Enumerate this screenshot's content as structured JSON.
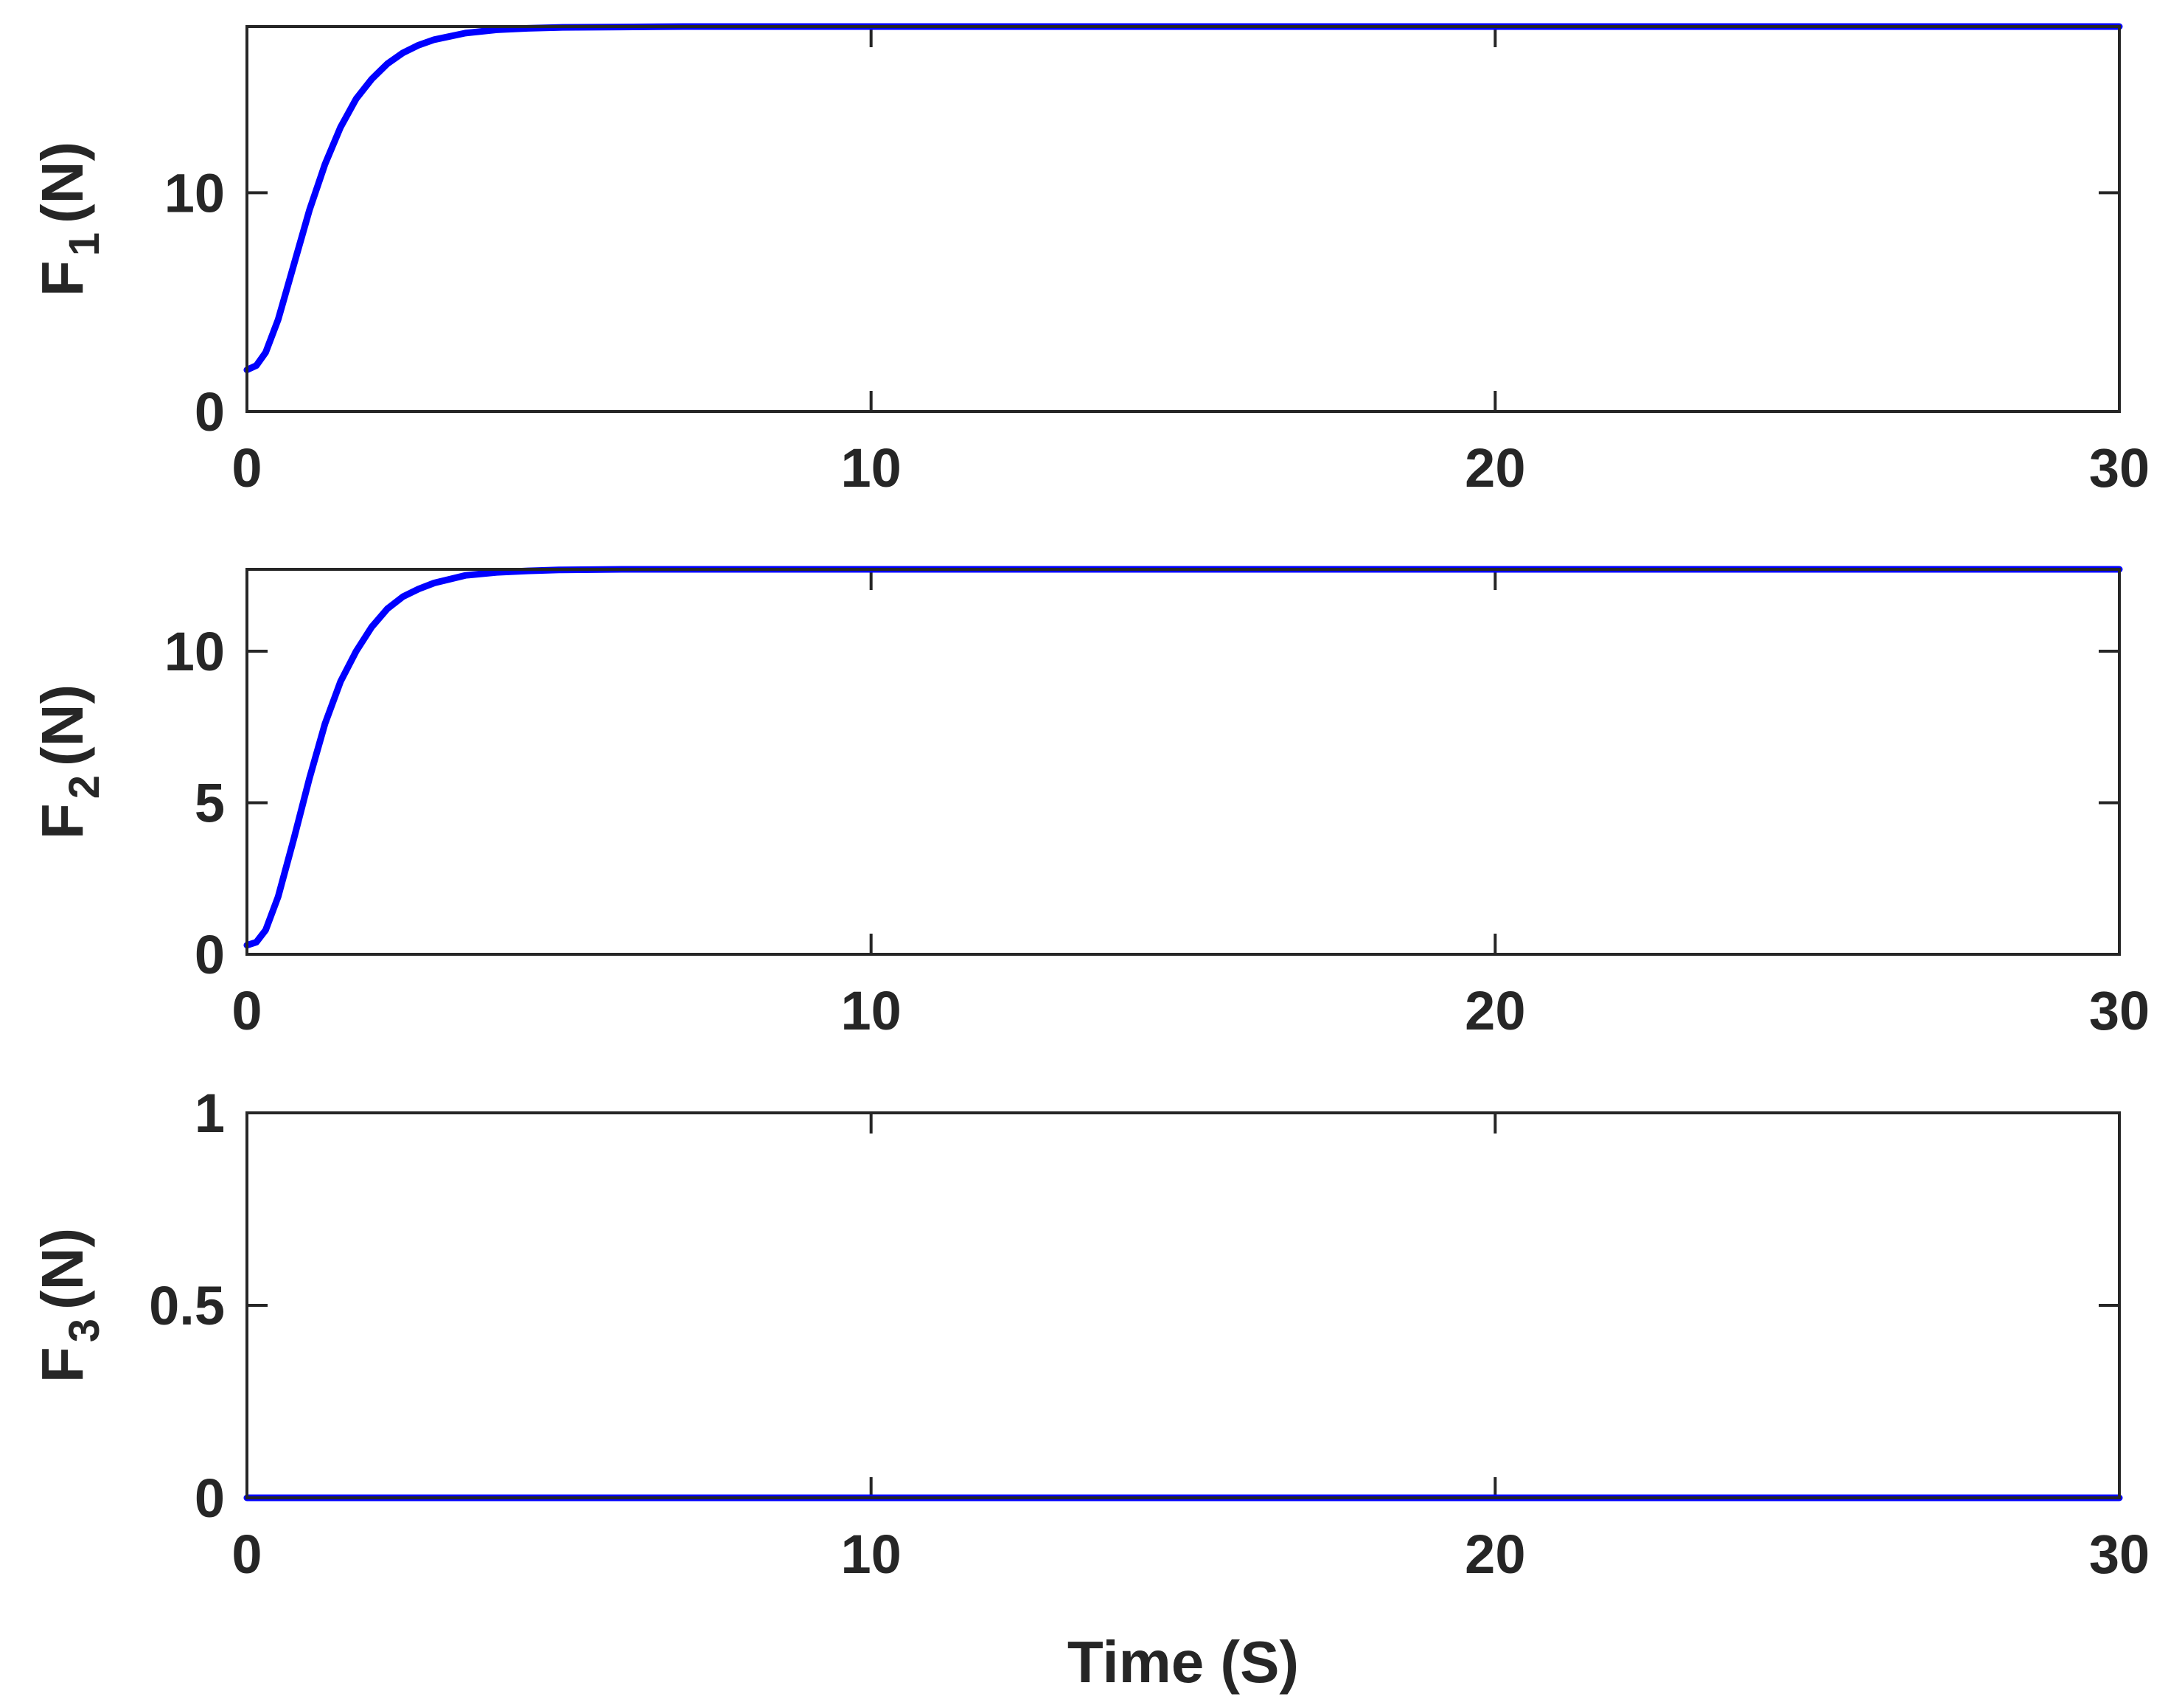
{
  "colors": {
    "series": "#0000ff",
    "axes": "#262626",
    "background": "#ffffff"
  },
  "chart_data": [
    {
      "type": "line",
      "ylabel": {
        "main": "F",
        "sub": "1",
        "unit": "(N)"
      },
      "xlabel": "",
      "xlim": [
        0,
        30
      ],
      "ylim": [
        0,
        17.6
      ],
      "xticks": [
        0,
        10,
        20,
        30
      ],
      "yticks": [
        0,
        10
      ],
      "xtick_labels": [
        "0",
        "10",
        "20",
        "30"
      ],
      "ytick_labels": [
        "0",
        "10"
      ],
      "grid": false,
      "series": [
        {
          "color": "#0000ff",
          "x": [
            0,
            0.15,
            0.3,
            0.5,
            0.75,
            1.0,
            1.25,
            1.5,
            1.75,
            2.0,
            2.25,
            2.5,
            2.75,
            3.0,
            3.5,
            4.0,
            4.5,
            5.0,
            6.0,
            7.0,
            8.0,
            10.0,
            15.0,
            20.0,
            25.0,
            30.0
          ],
          "y": [
            1.9,
            2.1,
            2.7,
            4.2,
            6.7,
            9.2,
            11.3,
            13.0,
            14.3,
            15.2,
            15.9,
            16.4,
            16.75,
            17.0,
            17.3,
            17.45,
            17.52,
            17.56,
            17.58,
            17.6,
            17.6,
            17.6,
            17.6,
            17.6,
            17.6,
            17.6
          ]
        }
      ]
    },
    {
      "type": "line",
      "ylabel": {
        "main": "F",
        "sub": "2",
        "unit": "(N)"
      },
      "xlabel": "",
      "xlim": [
        0,
        30
      ],
      "ylim": [
        0,
        12.7
      ],
      "xticks": [
        0,
        10,
        20,
        30
      ],
      "yticks": [
        0,
        5,
        10
      ],
      "xtick_labels": [
        "0",
        "10",
        "20",
        "30"
      ],
      "ytick_labels": [
        "0",
        "5",
        "10"
      ],
      "grid": false,
      "series": [
        {
          "color": "#0000ff",
          "x": [
            0,
            0.15,
            0.3,
            0.5,
            0.75,
            1.0,
            1.25,
            1.5,
            1.75,
            2.0,
            2.25,
            2.5,
            2.75,
            3.0,
            3.5,
            4.0,
            4.5,
            5.0,
            6.0,
            7.0,
            8.0,
            10.0,
            15.0,
            20.0,
            25.0,
            30.0
          ],
          "y": [
            0.3,
            0.4,
            0.8,
            1.9,
            3.8,
            5.8,
            7.6,
            9.0,
            10.0,
            10.8,
            11.4,
            11.8,
            12.05,
            12.25,
            12.5,
            12.6,
            12.65,
            12.68,
            12.7,
            12.7,
            12.7,
            12.7,
            12.7,
            12.7,
            12.7,
            12.7
          ]
        }
      ]
    },
    {
      "type": "line",
      "ylabel": {
        "main": "F",
        "sub": "3",
        "unit": "(N)"
      },
      "xlabel": "Time (S)",
      "xlim": [
        0,
        30
      ],
      "ylim": [
        0,
        1
      ],
      "xticks": [
        0,
        10,
        20,
        30
      ],
      "yticks": [
        0,
        0.5,
        1
      ],
      "xtick_labels": [
        "0",
        "10",
        "20",
        "30"
      ],
      "ytick_labels": [
        "0",
        "0.5",
        "1"
      ],
      "grid": false,
      "series": [
        {
          "color": "#0000ff",
          "x": [
            0,
            30
          ],
          "y": [
            0,
            0
          ]
        }
      ]
    }
  ]
}
